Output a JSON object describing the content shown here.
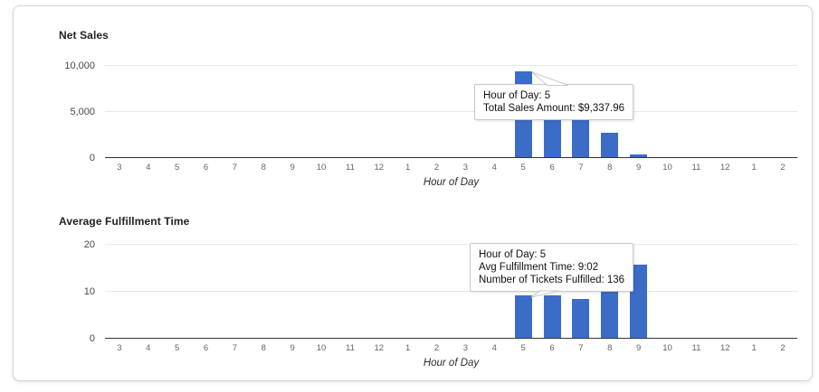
{
  "panel": {
    "name": "sales-report-panel"
  },
  "colors": {
    "bar": "#3b6cc8",
    "gridline": "#e8e8e8",
    "baseline": "#333333",
    "tooltip_border": "#c9c9c9"
  },
  "chart_data": [
    {
      "type": "bar",
      "title": "Net Sales",
      "xlabel": "Hour of Day",
      "ylabel": "",
      "ylim": [
        0,
        11176
      ],
      "grid": true,
      "legend": "none",
      "categories": [
        "3",
        "4",
        "5",
        "6",
        "7",
        "8",
        "9",
        "10",
        "11",
        "12",
        "1",
        "2",
        "3",
        "4",
        "5",
        "6",
        "7",
        "8",
        "9",
        "10",
        "11",
        "12",
        "1",
        "2"
      ],
      "values": [
        0,
        0,
        0,
        0,
        0,
        0,
        0,
        0,
        0,
        0,
        0,
        0,
        0,
        0,
        9337.96,
        7450,
        7300,
        2600,
        300,
        0,
        0,
        0,
        0,
        0
      ],
      "y_ticks": [
        {
          "label": "0",
          "value": 0
        },
        {
          "label": "5,000",
          "value": 5000
        },
        {
          "label": "10,000",
          "value": 10000
        }
      ],
      "tooltip": {
        "anchor_category_index": 14,
        "lines": [
          "Hour of Day: 5",
          "Total Sales Amount: $9,337.96"
        ]
      }
    },
    {
      "type": "bar",
      "title": "Average Fulfillment Time",
      "xlabel": "Hour of Day",
      "ylabel": "",
      "ylim": [
        0,
        22.3
      ],
      "grid": true,
      "legend": "none",
      "categories": [
        "3",
        "4",
        "5",
        "6",
        "7",
        "8",
        "9",
        "10",
        "11",
        "12",
        "1",
        "2",
        "3",
        "4",
        "5",
        "6",
        "7",
        "8",
        "9",
        "10",
        "11",
        "12",
        "1",
        "2"
      ],
      "values": [
        0,
        0,
        0,
        0,
        0,
        0,
        0,
        0,
        0,
        0,
        0,
        0,
        0,
        0,
        9.03,
        9.1,
        8.35,
        11.7,
        15.6,
        0,
        0,
        0,
        0,
        0
      ],
      "y_ticks": [
        {
          "label": "0",
          "value": 0
        },
        {
          "label": "10",
          "value": 10
        },
        {
          "label": "20",
          "value": 20
        }
      ],
      "tooltip": {
        "anchor_category_index": 14,
        "lines": [
          "Hour of Day: 5",
          "Avg Fulfillment Time: 9:02",
          "Number of Tickets Fulfilled: 136"
        ]
      }
    }
  ]
}
